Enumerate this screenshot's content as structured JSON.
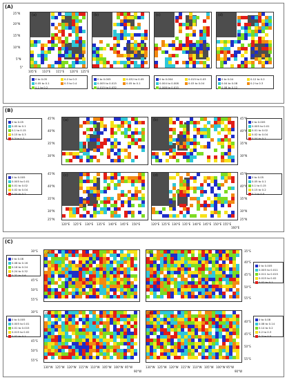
{
  "sections": [
    {
      "label": "(A)",
      "panels": [
        {
          "letter": "(a)"
        },
        {
          "letter": "(b)"
        },
        {
          "letter": "(c)"
        },
        {
          "letter": "(d)"
        }
      ],
      "y_ticks": [
        "25°N",
        "20°N",
        "15°N",
        "10°N",
        "5°N",
        "5°"
      ],
      "x_ticks": [
        "105°E",
        "110°E",
        "115°E",
        "120°E",
        "125°E"
      ],
      "legends": [
        {
          "items": [
            "0 to 0.05",
            "0.05 to 0.1",
            "0.1 to 0.2",
            "0.2 to 0.3",
            "0.3 to 0.4"
          ]
        },
        {
          "items": [
            "0 to 0.005",
            "0.005 to 0.015",
            "0.015 to 0.032",
            "0.032 to 0.05",
            "0.05 to 0.1"
          ]
        },
        {
          "items": [
            "0 to 0.004",
            "0.004 to 0.008",
            "0.008 to 0.015",
            "0.015 to 0.03",
            "0.03 to 0.04"
          ]
        },
        {
          "items": [
            "0 to 0.04",
            "0.04 to 0.08",
            "0.08 to 0.12",
            "0.12 to 0.2",
            "0.2 to 0.3"
          ]
        }
      ]
    },
    {
      "label": "(B)",
      "panels": [
        {
          "letter": "(a)"
        },
        {
          "letter": "(b)"
        },
        {
          "letter": "(c)"
        },
        {
          "letter": "(d)"
        }
      ],
      "y_ticks": [
        "45°N",
        "40°N",
        "35°N",
        "30°N",
        "25°N"
      ],
      "x_ticks": [
        "120°E",
        "125°E",
        "130°E",
        "135°E",
        "140°E",
        "145°E",
        "150°E",
        "155°E",
        "160°E"
      ],
      "legends": [
        {
          "items": [
            "0 to 0.05",
            "0.05 to 0.1",
            "0.1 to 0.15",
            "0.15 to 0.3",
            "0.3 to 0.7"
          ]
        },
        {
          "items": [
            "0 to 0.005",
            "0.005 to 0.01",
            "0.01 to 0.02",
            "0.02 to 0.04",
            "0.04 to 0.1"
          ]
        },
        {
          "items": [
            "0 to 0.005",
            "0.005 to 0.01",
            "0.01 to 0.02",
            "0.02 to 0.04",
            "0.04 to 0.2"
          ]
        },
        {
          "items": [
            "0 to 0.05",
            "0.05 to 0.1",
            "0.1 to 0.15",
            "0.15 to 0.2",
            "0.2 to 0.5"
          ]
        }
      ]
    },
    {
      "label": "(C)",
      "panels": [
        {
          "letter": "(a)"
        },
        {
          "letter": "(b)"
        },
        {
          "letter": "(c)"
        },
        {
          "letter": "(d)"
        }
      ],
      "y_ticks": [
        "30°S",
        "35°S",
        "40°S",
        "45°S",
        "50°S",
        "55°S"
      ],
      "x_ticks": [
        "130°W",
        "125°W",
        "120°W",
        "115°W",
        "110°W",
        "105°W",
        "100°W",
        "95°W",
        "90°W"
      ],
      "legends": [
        {
          "items": [
            "0 to 0.08",
            "0.08 to 0.16",
            "0.16 to 0.24",
            "0.24 to 0.32",
            "0.32 to 0.6"
          ]
        },
        {
          "items": [
            "0 to 0.005",
            "0.005 to 0.011",
            "0.011 to 0.015",
            "0.015 to 0.02",
            "0.02 to 0.1"
          ]
        },
        {
          "items": [
            "0 to 0.005",
            "0.005 to 0.01",
            "0.01 to 0.015",
            "0.015 to 0.02",
            "0.02 to 0.1"
          ]
        },
        {
          "items": [
            "0 to 0.08",
            "0.08 to 0.14",
            "0.14 to 0.2",
            "0.2 to 0.3",
            "0.3 to 0.5"
          ]
        }
      ]
    }
  ],
  "colors": {
    "class_colors": [
      "#1f2ec8",
      "#2fc7d8",
      "#7ddc22",
      "#f6e21a",
      "#f28a12",
      "#e21d17"
    ],
    "land": "#4d4d4d",
    "frame": "#333333"
  }
}
